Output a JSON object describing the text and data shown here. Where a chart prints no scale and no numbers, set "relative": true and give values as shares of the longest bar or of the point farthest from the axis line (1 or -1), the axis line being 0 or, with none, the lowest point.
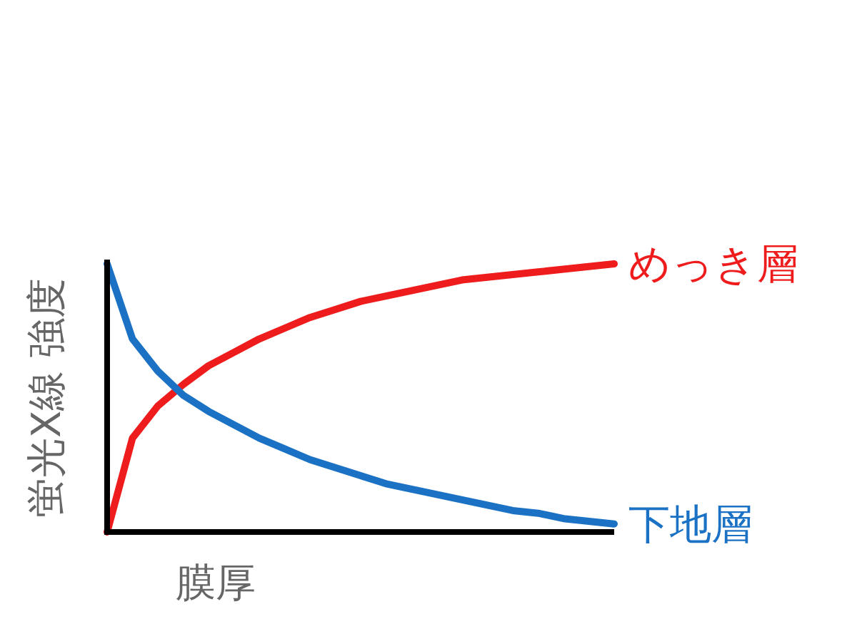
{
  "chart_data": {
    "type": "line",
    "relative": true,
    "xlabel": "膜厚",
    "ylabel": "蛍光X線 強度",
    "categories": [
      null,
      null,
      null,
      null,
      null,
      null,
      null,
      null,
      null,
      null,
      null,
      null,
      null,
      null,
      null,
      null,
      null,
      null,
      null,
      null,
      null
    ],
    "series": [
      {
        "name": "めっき層",
        "color": "#ee1c1c",
        "values": [
          0,
          0.35,
          0.47,
          0.55,
          0.62,
          0.67,
          0.72,
          0.76,
          0.8,
          0.83,
          0.86,
          0.88,
          0.9,
          0.92,
          0.94,
          0.95,
          0.96,
          0.97,
          0.98,
          0.99,
          1
        ]
      },
      {
        "name": "下地層",
        "color": "#1b72c4",
        "values": [
          1,
          0.72,
          0.6,
          0.51,
          0.45,
          0.4,
          0.35,
          0.31,
          0.27,
          0.24,
          0.21,
          0.18,
          0.16,
          0.14,
          0.12,
          0.1,
          0.08,
          0.07,
          0.05,
          0.04,
          0.03
        ]
      }
    ],
    "legend": false,
    "grid": false,
    "marker": "none",
    "line_style": "solid"
  }
}
